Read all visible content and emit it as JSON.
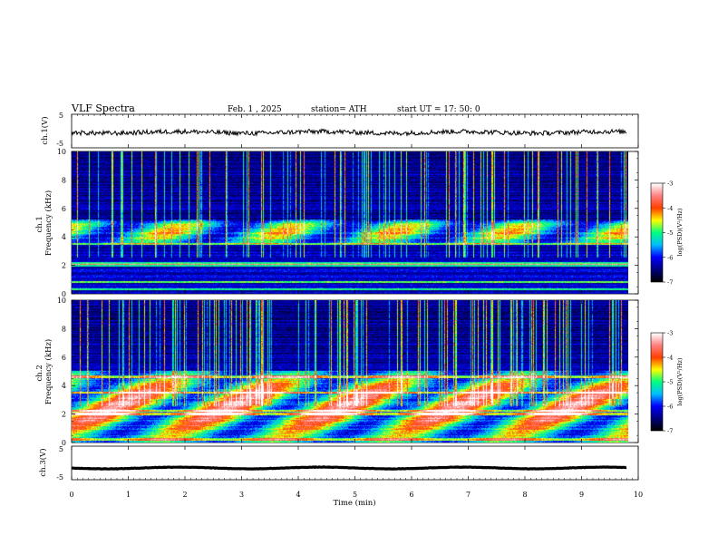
{
  "header": {
    "title": "VLF  Spectra",
    "date": "Feb. 1  , 2025",
    "station": "station= ATH",
    "start": "start  UT  =   17: 50: 0"
  },
  "chart_data": [
    {
      "type": "line",
      "panel": "ch1-waveform",
      "ylabel": "ch.1(V)",
      "ylim": [
        -5,
        5
      ],
      "yticks": [
        "5",
        "-5"
      ],
      "xlim": [
        0,
        10
      ],
      "x_end": 9.8,
      "baseline": -0.4,
      "color": "#000000"
    },
    {
      "type": "heatmap",
      "panel": "ch1-spectrogram",
      "ylabel": "ch.1\nFrequency  (kHz)",
      "ylim": [
        0,
        10
      ],
      "yticks": [
        "0",
        "2",
        "4",
        "6",
        "8",
        "10"
      ],
      "xlim": [
        0,
        10
      ],
      "x_end": 9.8,
      "features": {
        "band_kHz": [
          3.5,
          5.2
        ],
        "band_strength": 0.55,
        "lines_kHz": [
          2.0,
          2.1,
          0.8,
          0.3,
          3.5
        ],
        "sferic_density": 0.85
      },
      "colorbar": {
        "label": "log(PSD)(V²/Hz)",
        "ticks": [
          "-3",
          "-4",
          "-5",
          "-6",
          "-7"
        ],
        "range": [
          -7,
          -3
        ]
      }
    },
    {
      "type": "heatmap",
      "panel": "ch2-spectrogram",
      "ylabel": "ch.2\nFrequency  (kHz)",
      "ylim": [
        0,
        10
      ],
      "yticks": [
        "0",
        "2",
        "4",
        "6",
        "8",
        "10"
      ],
      "xlim": [
        0,
        10
      ],
      "x_end": 9.8,
      "features": {
        "band_kHz": [
          0,
          5.0
        ],
        "band_strength": 0.75,
        "lines_kHz": [
          4.6,
          3.5,
          2.0,
          2.2,
          0.2
        ],
        "sferic_density": 0.8
      },
      "colorbar": {
        "label": "log(PSD)(V²/Hz)",
        "ticks": [
          "-3",
          "-4",
          "-5",
          "-6",
          "-7"
        ],
        "range": [
          -7,
          -3
        ]
      }
    },
    {
      "type": "line",
      "panel": "ch3-waveform",
      "ylabel": "ch.3(V)",
      "ylim": [
        -5,
        5
      ],
      "yticks": [
        "5",
        "-5"
      ],
      "xlim": [
        0,
        10
      ],
      "x_end": 9.8,
      "baseline": -1.5,
      "color": "#000000"
    }
  ],
  "xaxis": {
    "label": "Time  (min)",
    "ticks": [
      "0",
      "1",
      "2",
      "3",
      "4",
      "5",
      "6",
      "7",
      "8",
      "9",
      "10"
    ]
  },
  "colormap": [
    "#000000",
    "#00007f",
    "#0000ff",
    "#00bfff",
    "#00ff80",
    "#ffff00",
    "#ff4000",
    "#ff8080",
    "#ffffff"
  ]
}
